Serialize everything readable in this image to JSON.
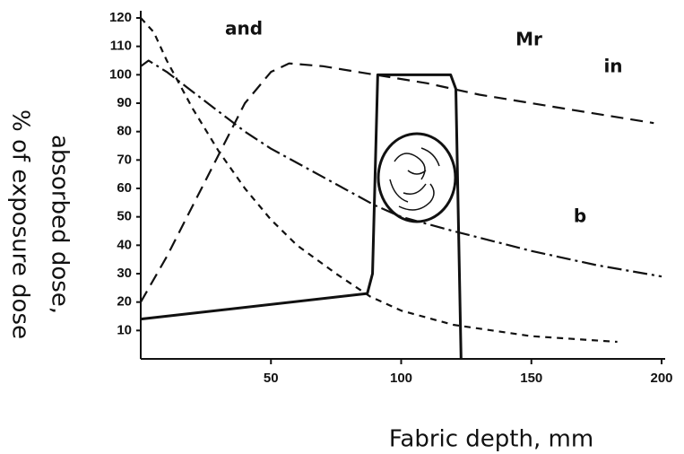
{
  "chart_data": {
    "type": "line",
    "x_label": "Fabric depth, mm",
    "y_label": [
      "absorbed dose,",
      "% of exposure dose"
    ],
    "annotations": [
      "and",
      "Mr",
      "in",
      "b"
    ],
    "xlim": [
      0,
      200
    ],
    "ylim": [
      0,
      120
    ],
    "xticks": [
      50,
      100,
      150,
      200
    ],
    "yticks": [
      10,
      20,
      30,
      40,
      50,
      60,
      70,
      80,
      90,
      100,
      110,
      120
    ],
    "series": [
      {
        "color": "#111111",
        "style": "long-dash",
        "x": [
          0,
          10,
          20,
          30,
          40,
          50,
          57,
          70,
          90,
          110,
          130,
          150,
          170,
          197
        ],
        "values": [
          20,
          36,
          54,
          72,
          90,
          101,
          104,
          103,
          100,
          97,
          93,
          90,
          87,
          83
        ]
      },
      {
        "color": "#111111",
        "style": "dash-dot",
        "x": [
          0,
          3,
          10,
          20,
          30,
          40,
          50,
          70,
          90,
          100,
          120,
          150,
          175,
          200
        ],
        "values": [
          103,
          105,
          101,
          94,
          87,
          80,
          74,
          64,
          54,
          50,
          45,
          38,
          33,
          29
        ]
      },
      {
        "color": "#111111",
        "style": "short-dash",
        "x": [
          0,
          5,
          10,
          20,
          30,
          40,
          50,
          60,
          75,
          88,
          100,
          120,
          150,
          183
        ],
        "values": [
          120,
          115,
          105,
          88,
          73,
          60,
          49,
          40,
          30,
          22,
          17,
          12,
          8,
          6
        ]
      },
      {
        "color": "#111111",
        "style": "solid",
        "x": [
          0,
          87,
          89,
          91,
          119,
          121,
          123
        ],
        "values": [
          14,
          23,
          30,
          100,
          100,
          95,
          0
        ]
      }
    ]
  }
}
